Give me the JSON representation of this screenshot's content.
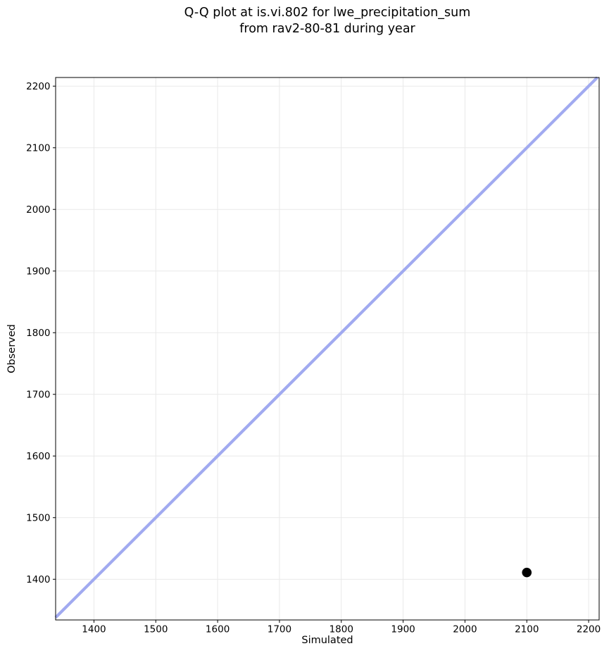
{
  "title": {
    "line1": "Q-Q plot at is.vi.802 for lwe_precipitation_sum",
    "line2": "from rav2-80-81 during year"
  },
  "chart_data": {
    "type": "scatter",
    "title": "Q-Q plot at is.vi.802 for lwe_precipitation_sum from rav2-80-81 during year",
    "xlabel": "Simulated",
    "ylabel": "Observed",
    "xlim": [
      1338,
      2217
    ],
    "ylim": [
      1334,
      2214
    ],
    "xticks": [
      1400,
      1500,
      1600,
      1700,
      1800,
      1900,
      2000,
      2100,
      2200
    ],
    "yticks": [
      1400,
      1500,
      1600,
      1700,
      1800,
      1900,
      2000,
      2100,
      2200
    ],
    "grid": true,
    "legend": "none",
    "points": [
      {
        "x": 2100,
        "y": 1411
      }
    ],
    "reference_line": {
      "kind": "identity",
      "slope": 1,
      "intercept": 0,
      "color": "#a1aaf0",
      "width": 4.2
    },
    "style": {
      "background": "#ffffff",
      "grid_color": "#e9e9e9",
      "spine_color": "#000000",
      "tick_color": "#000000",
      "text_color": "#000000",
      "point_color": "#000000",
      "point_radius": 6.8
    }
  }
}
